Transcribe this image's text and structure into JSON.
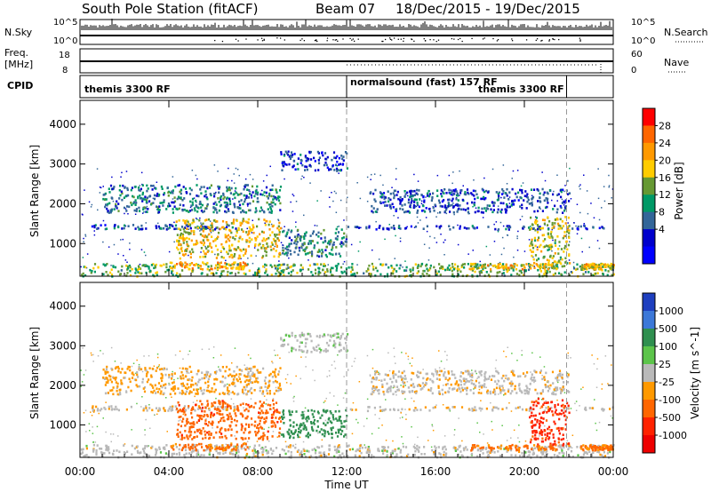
{
  "chart_data": {
    "type": "heatmap",
    "title": "South Pole Station (fitACF)",
    "beam": "Beam 07",
    "date_range": "18/Dec/2015 - 19/Dec/2015",
    "xlabel": "Time UT",
    "ylabel": "Slant Range [km]",
    "x_ticks": [
      "00:00",
      "04:00",
      "08:00",
      "12:00",
      "16:00",
      "20:00",
      "00:00"
    ],
    "x_range_hours": [
      0,
      24
    ],
    "y_ticks": [
      1000,
      2000,
      3000,
      4000
    ],
    "y_range_km": [
      180,
      4600
    ],
    "mode_change_hours": [
      12.0,
      21.9
    ],
    "summary": {
      "nsky_label": "N.Sky",
      "nsky_ticks": [
        "10^5",
        "10^0"
      ],
      "nsearch_label": "N.Search",
      "nsearch_ticks": [
        "10^5",
        "10^0"
      ],
      "freq_label": "Freq.",
      "freq_unit": "[MHz]",
      "freq_ticks": [
        "18",
        "8"
      ],
      "nave_label": "Nave",
      "nave_ticks": [
        "60",
        "0"
      ],
      "cpid_label": "CPID",
      "cpid_modes": [
        "themis 3300 RF",
        "normalsound (fast) 157 RF",
        "themis 3300 RF"
      ]
    },
    "power": {
      "label": "Power [dB]",
      "ticks": [
        28,
        24,
        20,
        16,
        12,
        8,
        4
      ],
      "range": [
        0,
        30
      ],
      "colors": [
        "#ff0000",
        "#ff6600",
        "#ff9900",
        "#ffcc00",
        "#669933",
        "#009966",
        "#336699",
        "#0000cc",
        "#0000ff"
      ]
    },
    "velocity": {
      "label": "Velocity [m s^-1]",
      "ticks": [
        "1000",
        "500",
        "100",
        "25",
        "-25",
        "-100",
        "-500",
        "-1000"
      ],
      "colors": [
        "#1e3fbf",
        "#3c78d8",
        "#2f8f4f",
        "#5cc44a",
        "#b9b9b9",
        "#ff9900",
        "#ff6600",
        "#ff2200",
        "#ee0000"
      ]
    },
    "echo_regions": [
      {
        "name": "ground-scatter-band",
        "t": [
          0.0,
          24.0
        ],
        "r": [
          200,
          520
        ],
        "power": 14,
        "velocity": 0
      },
      {
        "name": "band-1450-early",
        "t": [
          0.5,
          7.0
        ],
        "r": [
          1380,
          1500
        ],
        "power": 6,
        "velocity": -10
      },
      {
        "name": "band-1450-late",
        "t": [
          12.0,
          24.0
        ],
        "r": [
          1380,
          1480
        ],
        "power": 5,
        "velocity": -10
      },
      {
        "name": "patch-2100-early",
        "t": [
          1.0,
          9.0
        ],
        "r": [
          1800,
          2500
        ],
        "power": 9,
        "velocity": -40
      },
      {
        "name": "patch-3000",
        "t": [
          9.0,
          12.0
        ],
        "r": [
          2850,
          3350
        ],
        "power": 5,
        "velocity": 10
      },
      {
        "name": "strong-morning",
        "t": [
          4.3,
          9.0
        ],
        "r": [
          650,
          1650
        ],
        "power": 19,
        "velocity": -300
      },
      {
        "name": "near-range-strong",
        "t": [
          4.0,
          7.5
        ],
        "r": [
          380,
          560
        ],
        "power": 22,
        "velocity": -120
      },
      {
        "name": "midday-1000",
        "t": [
          9.0,
          12.0
        ],
        "r": [
          700,
          1400
        ],
        "power": 10,
        "velocity": 200
      },
      {
        "name": "afternoon-2000",
        "t": [
          13.0,
          22.0
        ],
        "r": [
          1800,
          2400
        ],
        "power": 6,
        "velocity": -10
      },
      {
        "name": "evening-strong",
        "t": [
          20.2,
          22.0
        ],
        "r": [
          500,
          1700
        ],
        "power": 17,
        "velocity": -500
      },
      {
        "name": "evening-near",
        "t": [
          17.5,
          21.5
        ],
        "r": [
          380,
          520
        ],
        "power": 20,
        "velocity": -120
      },
      {
        "name": "late-near",
        "t": [
          22.5,
          24.0
        ],
        "r": [
          380,
          520
        ],
        "power": 20,
        "velocity": -120
      }
    ]
  }
}
